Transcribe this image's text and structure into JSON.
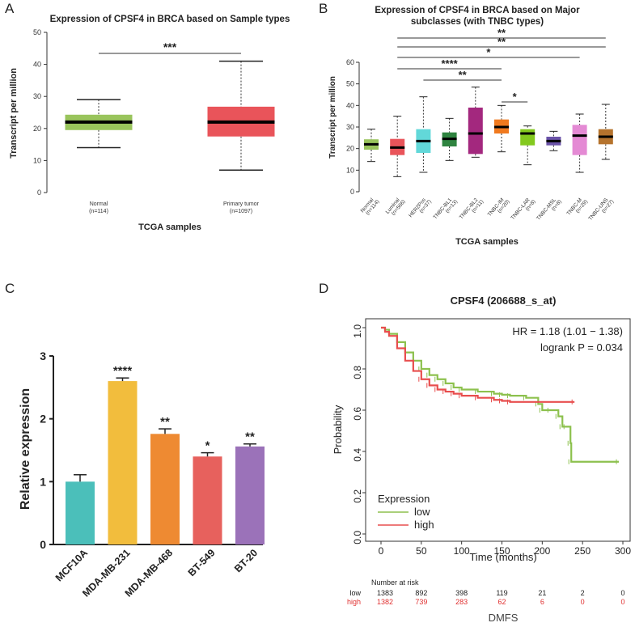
{
  "colors": {
    "green": "#99c45c",
    "red": "#e9545a",
    "cyan": "#62d8d9"
  },
  "chart_data": [
    {
      "panel": "A",
      "type": "box",
      "title": "Expression of CPSF4 in BRCA based on Sample types",
      "xlabel": "TCGA samples",
      "ylabel": "Transcript per million",
      "ylim": [
        0,
        50
      ],
      "yticks": [
        0,
        10,
        20,
        30,
        40,
        50
      ],
      "groups": [
        {
          "name": "Normal",
          "n": "(n=114)",
          "min": 14,
          "q1": 19.5,
          "median": 22,
          "q3": 24.3,
          "max": 29,
          "color": "#99c45c"
        },
        {
          "name": "Primary tumor",
          "n": "(n=1097)",
          "min": 7,
          "q1": 17.5,
          "median": 22,
          "q3": 26.8,
          "max": 41,
          "color": "#e9545a"
        }
      ],
      "significance": [
        {
          "from": 0,
          "to": 1,
          "label": "***"
        }
      ]
    },
    {
      "panel": "B",
      "type": "box",
      "title_line1": "Expression of CPSF4 in BRCA based on Major",
      "title_line2": "subclasses (with TNBC types)",
      "xlabel": "TCGA samples",
      "ylabel": "Transcript per million",
      "ylim": [
        0,
        60
      ],
      "yticks": [
        0,
        10,
        20,
        30,
        40,
        50,
        60
      ],
      "groups": [
        {
          "name": "Normal",
          "n": "(n=114)",
          "min": 14,
          "q1": 19.5,
          "median": 22,
          "q3": 24.3,
          "max": 29,
          "color": "#99c45c"
        },
        {
          "name": "Luminal",
          "n": "(n=566)",
          "min": 7,
          "q1": 17,
          "median": 20.5,
          "q3": 24.5,
          "max": 35,
          "color": "#e9545a"
        },
        {
          "name": "HER2Pos",
          "n": "(n=37)",
          "min": 9,
          "q1": 18,
          "median": 23.5,
          "q3": 29,
          "max": 44,
          "color": "#62d8d9"
        },
        {
          "name": "TNBC-BL1",
          "n": "(n=13)",
          "min": 14.5,
          "q1": 21,
          "median": 24.5,
          "q3": 27.5,
          "max": 34,
          "color": "#2f8440"
        },
        {
          "name": "TNBC-BL2",
          "n": "(n=11)",
          "min": 16,
          "q1": 17.5,
          "median": 27,
          "q3": 39,
          "max": 48.5,
          "color": "#a3287e"
        },
        {
          "name": "TNBC-IM",
          "n": "(n=20)",
          "min": 18.5,
          "q1": 27,
          "median": 30,
          "q3": 33.5,
          "max": 40,
          "color": "#f07a1f"
        },
        {
          "name": "TNBC-LAR",
          "n": "(n=8)",
          "min": 12.5,
          "q1": 21.5,
          "median": 27,
          "q3": 29,
          "max": 30.5,
          "color": "#83c91e"
        },
        {
          "name": "TNBC-MSL",
          "n": "(n=8)",
          "min": 19,
          "q1": 21.5,
          "median": 23.5,
          "q3": 25.5,
          "max": 28,
          "color": "#6a52a8"
        },
        {
          "name": "TNBC-M",
          "n": "(n=29)",
          "min": 9,
          "q1": 17,
          "median": 26,
          "q3": 31,
          "max": 36,
          "color": "#e48ad4"
        },
        {
          "name": "TNBC-UNS",
          "n": "(n=27)",
          "min": 15,
          "q1": 22,
          "median": 25.5,
          "q3": 29,
          "max": 40.5,
          "color": "#b5732d"
        }
      ],
      "significance": [
        {
          "from": 1,
          "to": 9,
          "label": "**"
        },
        {
          "from": 1,
          "to": 9,
          "label": "**"
        },
        {
          "from": 1,
          "to": 8,
          "label": "*"
        },
        {
          "from": 1,
          "to": 5,
          "label": "****"
        },
        {
          "from": 2,
          "to": 5,
          "label": "**"
        },
        {
          "from": 5,
          "to": 6,
          "label": "*"
        }
      ]
    },
    {
      "panel": "C",
      "type": "bar",
      "xlabel": "",
      "ylabel": "Relative expression",
      "ylim": [
        0,
        3
      ],
      "yticks": [
        0,
        1,
        2,
        3
      ],
      "categories": [
        "MCF10A",
        "MDA-MB-231",
        "MDA-MB-468",
        "BT-549",
        "BT-20"
      ],
      "values": [
        1.0,
        2.6,
        1.76,
        1.4,
        1.56
      ],
      "errors": [
        0.11,
        0.05,
        0.08,
        0.06,
        0.04
      ],
      "colors": [
        "#4bbfba",
        "#f2bd3d",
        "#ee8a32",
        "#e7615d",
        "#9b72b9"
      ],
      "stars": [
        "",
        "****",
        "**",
        "*",
        "**"
      ]
    },
    {
      "panel": "D",
      "type": "line",
      "title": "CPSF4 (206688_s_at)",
      "xlabel": "Time (months)",
      "ylabel": "Probability",
      "xlim": [
        0,
        300
      ],
      "ylim": [
        0,
        1
      ],
      "xticks": [
        0,
        50,
        100,
        150,
        200,
        250,
        300
      ],
      "yticks": [
        "0.0",
        "0.2",
        "0.4",
        "0.6",
        "0.8",
        "1.0"
      ],
      "hr_text": "HR = 1.18 (1.01 − 1.38)",
      "logrank_text": "logrank P = 0.034",
      "legend_title": "Expression",
      "series": [
        {
          "name": "low",
          "color": "#8dc14e",
          "x": [
            0,
            5,
            10,
            20,
            30,
            40,
            50,
            60,
            70,
            80,
            90,
            100,
            120,
            140,
            150,
            160,
            180,
            195,
            200,
            210,
            220,
            225,
            230,
            235,
            236,
            295
          ],
          "y": [
            1.0,
            0.99,
            0.97,
            0.93,
            0.88,
            0.84,
            0.8,
            0.77,
            0.75,
            0.73,
            0.71,
            0.7,
            0.69,
            0.68,
            0.675,
            0.67,
            0.66,
            0.63,
            0.6,
            0.6,
            0.57,
            0.52,
            0.52,
            0.44,
            0.35,
            0.35
          ]
        },
        {
          "name": "high",
          "color": "#e84e4e",
          "x": [
            0,
            5,
            10,
            20,
            30,
            40,
            50,
            60,
            70,
            80,
            90,
            100,
            120,
            140,
            150,
            160,
            240
          ],
          "y": [
            1.0,
            0.98,
            0.96,
            0.9,
            0.84,
            0.79,
            0.75,
            0.72,
            0.7,
            0.69,
            0.68,
            0.67,
            0.66,
            0.65,
            0.645,
            0.64,
            0.64
          ]
        }
      ],
      "risk_table": {
        "header": "Number at risk",
        "times": [
          0,
          50,
          100,
          150,
          200,
          250,
          300
        ],
        "rows": [
          {
            "label": "low",
            "values": [
              "1383",
              "892",
              "398",
              "119",
              "21",
              "2",
              "0"
            ],
            "color": "#222222"
          },
          {
            "label": "high",
            "values": [
              "1382",
              "739",
              "283",
              "62",
              "6",
              "0",
              "0"
            ],
            "color": "#e03030"
          }
        ]
      },
      "footer": "DMFS"
    }
  ],
  "panel_letters": [
    "A",
    "B",
    "C",
    "D"
  ],
  "panelA_xlabels": {
    "normal": "Normal",
    "normal_n": "(n=114)",
    "tumor": "Primary tumor",
    "tumor_n": "(n=1097)"
  }
}
